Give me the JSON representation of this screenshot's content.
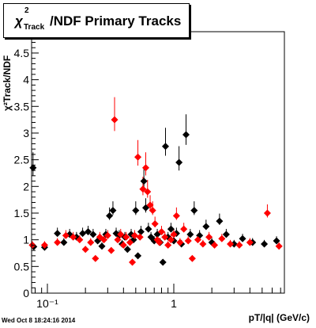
{
  "chart_data": {
    "type": "scatter",
    "title_symbol": "χ",
    "title_sup": "2",
    "title_sub": "Track",
    "title_rest": "/NDF  Primary Tracks",
    "ylabel": "χ²Track/NDF",
    "xlabel": "pT/|q| (GeV/c)",
    "x_scale": "log",
    "xlim": [
      0.075,
      7.5
    ],
    "ylim": [
      0,
      4.9
    ],
    "y_ticks": [
      "0",
      "0.5",
      "1",
      "1.5",
      "2",
      "2.5",
      "3",
      "3.5",
      "4",
      "4.5"
    ],
    "x_ticks": [
      "10⁻¹",
      "1"
    ],
    "grid": false,
    "series": [
      {
        "color": "#000000",
        "marker": "diamond",
        "points": [
          {
            "x": 0.077,
            "y": 2.35
          },
          {
            "x": 0.078,
            "y": 0.87
          },
          {
            "x": 0.095,
            "y": 0.86
          },
          {
            "x": 0.12,
            "y": 1.12
          },
          {
            "x": 0.135,
            "y": 0.95
          },
          {
            "x": 0.15,
            "y": 1.1
          },
          {
            "x": 0.17,
            "y": 1.05
          },
          {
            "x": 0.19,
            "y": 1.12
          },
          {
            "x": 0.21,
            "y": 1.15
          },
          {
            "x": 0.23,
            "y": 1.1
          },
          {
            "x": 0.25,
            "y": 0.98
          },
          {
            "x": 0.27,
            "y": 0.88
          },
          {
            "x": 0.29,
            "y": 1.1
          },
          {
            "x": 0.31,
            "y": 1.45
          },
          {
            "x": 0.33,
            "y": 1.55
          },
          {
            "x": 0.35,
            "y": 1.12
          },
          {
            "x": 0.37,
            "y": 1.08
          },
          {
            "x": 0.39,
            "y": 0.92
          },
          {
            "x": 0.41,
            "y": 1.05
          },
          {
            "x": 0.43,
            "y": 0.82
          },
          {
            "x": 0.46,
            "y": 1.1
          },
          {
            "x": 0.48,
            "y": 1.0
          },
          {
            "x": 0.5,
            "y": 1.55
          },
          {
            "x": 0.52,
            "y": 0.7
          },
          {
            "x": 0.55,
            "y": 1.15
          },
          {
            "x": 0.58,
            "y": 2.1
          },
          {
            "x": 0.6,
            "y": 1.6
          },
          {
            "x": 0.63,
            "y": 1.2
          },
          {
            "x": 0.66,
            "y": 1.05
          },
          {
            "x": 0.7,
            "y": 0.98
          },
          {
            "x": 0.74,
            "y": 1.1
          },
          {
            "x": 0.78,
            "y": 0.95
          },
          {
            "x": 0.82,
            "y": 0.58
          },
          {
            "x": 0.86,
            "y": 2.75
          },
          {
            "x": 0.9,
            "y": 1.05
          },
          {
            "x": 0.95,
            "y": 1.2
          },
          {
            "x": 1.0,
            "y": 0.98
          },
          {
            "x": 1.05,
            "y": 1.12
          },
          {
            "x": 1.1,
            "y": 2.45
          },
          {
            "x": 1.15,
            "y": 0.92
          },
          {
            "x": 1.25,
            "y": 2.97
          },
          {
            "x": 1.35,
            "y": 1.1
          },
          {
            "x": 1.45,
            "y": 1.55
          },
          {
            "x": 1.6,
            "y": 1.08
          },
          {
            "x": 1.8,
            "y": 1.25
          },
          {
            "x": 2.0,
            "y": 0.95
          },
          {
            "x": 2.3,
            "y": 1.35
          },
          {
            "x": 2.6,
            "y": 1.1
          },
          {
            "x": 3.0,
            "y": 0.92
          },
          {
            "x": 3.5,
            "y": 1.02
          },
          {
            "x": 4.2,
            "y": 0.95
          },
          {
            "x": 5.2,
            "y": 0.92
          },
          {
            "x": 6.5,
            "y": 0.98
          }
        ]
      },
      {
        "color": "#ff0000",
        "marker": "diamond",
        "points": [
          {
            "x": 0.076,
            "y": 0.9
          },
          {
            "x": 0.095,
            "y": 0.9
          },
          {
            "x": 0.12,
            "y": 0.95
          },
          {
            "x": 0.14,
            "y": 1.08
          },
          {
            "x": 0.16,
            "y": 1.05
          },
          {
            "x": 0.18,
            "y": 1.0
          },
          {
            "x": 0.2,
            "y": 0.82
          },
          {
            "x": 0.22,
            "y": 0.95
          },
          {
            "x": 0.24,
            "y": 0.65
          },
          {
            "x": 0.26,
            "y": 1.05
          },
          {
            "x": 0.28,
            "y": 1.0
          },
          {
            "x": 0.3,
            "y": 1.08
          },
          {
            "x": 0.32,
            "y": 0.8
          },
          {
            "x": 0.34,
            "y": 3.25
          },
          {
            "x": 0.36,
            "y": 1.0
          },
          {
            "x": 0.38,
            "y": 1.1
          },
          {
            "x": 0.4,
            "y": 0.9
          },
          {
            "x": 0.42,
            "y": 1.05
          },
          {
            "x": 0.45,
            "y": 0.95
          },
          {
            "x": 0.47,
            "y": 0.58
          },
          {
            "x": 0.49,
            "y": 1.08
          },
          {
            "x": 0.52,
            "y": 2.55
          },
          {
            "x": 0.54,
            "y": 1.05
          },
          {
            "x": 0.57,
            "y": 1.95
          },
          {
            "x": 0.6,
            "y": 2.35
          },
          {
            "x": 0.62,
            "y": 1.9
          },
          {
            "x": 0.65,
            "y": 1.65
          },
          {
            "x": 0.68,
            "y": 1.55
          },
          {
            "x": 0.71,
            "y": 1.3
          },
          {
            "x": 0.74,
            "y": 1.0
          },
          {
            "x": 0.77,
            "y": 0.95
          },
          {
            "x": 0.8,
            "y": 1.15
          },
          {
            "x": 0.85,
            "y": 1.05
          },
          {
            "x": 0.9,
            "y": 0.9
          },
          {
            "x": 0.95,
            "y": 1.0
          },
          {
            "x": 1.0,
            "y": 1.1
          },
          {
            "x": 1.05,
            "y": 1.45
          },
          {
            "x": 1.12,
            "y": 0.95
          },
          {
            "x": 1.2,
            "y": 1.2
          },
          {
            "x": 1.3,
            "y": 0.98
          },
          {
            "x": 1.4,
            "y": 0.65
          },
          {
            "x": 1.55,
            "y": 1.0
          },
          {
            "x": 1.7,
            "y": 0.92
          },
          {
            "x": 1.9,
            "y": 1.05
          },
          {
            "x": 2.1,
            "y": 0.9
          },
          {
            "x": 2.4,
            "y": 1.02
          },
          {
            "x": 2.8,
            "y": 0.92
          },
          {
            "x": 3.3,
            "y": 0.9
          },
          {
            "x": 4.0,
            "y": 0.95
          },
          {
            "x": 5.5,
            "y": 1.5
          },
          {
            "x": 6.8,
            "y": 0.88
          }
        ]
      }
    ]
  },
  "timestamp": "Wed Oct  8 18:24:16 2014"
}
